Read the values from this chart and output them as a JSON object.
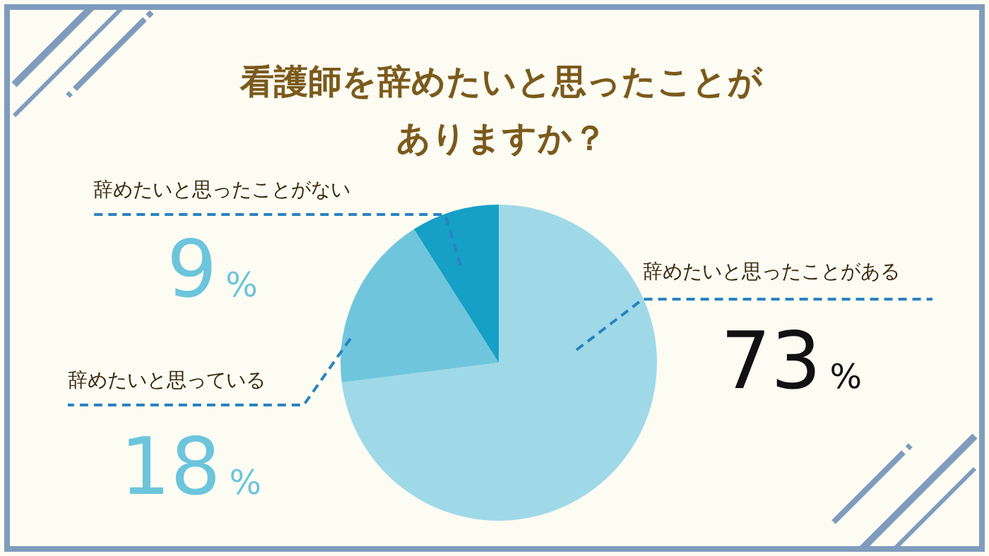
{
  "chart_data": {
    "type": "pie",
    "title": "看護師を辞めたいと思ったことがありますか？",
    "categories": [
      "辞めたいと思ったことがある",
      "辞めたいと思っている",
      "辞めたいと思ったことがない"
    ],
    "values": [
      73,
      18,
      9
    ],
    "value_labels": [
      "73%",
      "18%",
      "9%"
    ],
    "colors": [
      "#9fd9e7",
      "#6fc6dc",
      "#16a0c6"
    ]
  }
}
